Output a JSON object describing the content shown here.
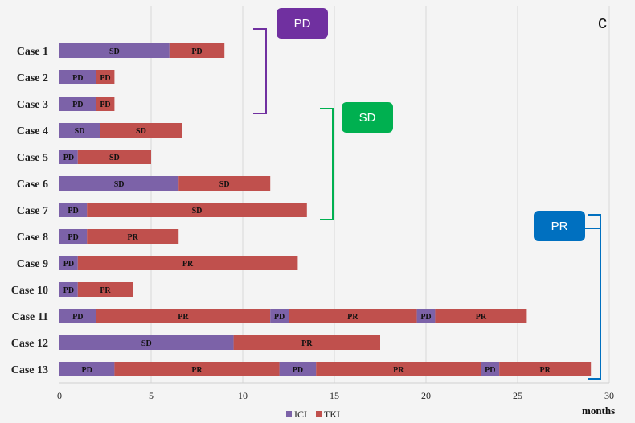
{
  "chart_data": {
    "type": "bar",
    "orientation": "horizontal",
    "stacked": true,
    "panel_label": "c",
    "xlabel": "months",
    "xlim": [
      0,
      30
    ],
    "xticks": [
      0,
      5,
      10,
      15,
      20,
      25,
      30
    ],
    "legend": [
      {
        "name": "ICI",
        "color": "#7c62a8"
      },
      {
        "name": "TKI",
        "color": "#c0504d"
      }
    ],
    "cases": [
      {
        "label": "Case 1",
        "segments": [
          {
            "drug": "ICI",
            "start": 0,
            "end": 6,
            "response": "SD"
          },
          {
            "drug": "TKI",
            "start": 6,
            "end": 9,
            "response": "PD"
          }
        ]
      },
      {
        "label": "Case 2",
        "segments": [
          {
            "drug": "ICI",
            "start": 0,
            "end": 2,
            "response": "PD"
          },
          {
            "drug": "TKI",
            "start": 2,
            "end": 3,
            "response": "PD"
          }
        ]
      },
      {
        "label": "Case 3",
        "segments": [
          {
            "drug": "ICI",
            "start": 0,
            "end": 2,
            "response": "PD"
          },
          {
            "drug": "TKI",
            "start": 2,
            "end": 3,
            "response": "PD"
          }
        ]
      },
      {
        "label": "Case 4",
        "segments": [
          {
            "drug": "ICI",
            "start": 0,
            "end": 2.2,
            "response": "SD"
          },
          {
            "drug": "TKI",
            "start": 2.2,
            "end": 6.7,
            "response": "SD"
          }
        ]
      },
      {
        "label": "Case 5",
        "segments": [
          {
            "drug": "ICI",
            "start": 0,
            "end": 1,
            "response": "PD"
          },
          {
            "drug": "TKI",
            "start": 1,
            "end": 5,
            "response": "SD"
          }
        ]
      },
      {
        "label": "Case 6",
        "segments": [
          {
            "drug": "ICI",
            "start": 0,
            "end": 6.5,
            "response": "SD"
          },
          {
            "drug": "TKI",
            "start": 6.5,
            "end": 11.5,
            "response": "SD"
          }
        ]
      },
      {
        "label": "Case 7",
        "segments": [
          {
            "drug": "ICI",
            "start": 0,
            "end": 1.5,
            "response": "PD"
          },
          {
            "drug": "TKI",
            "start": 1.5,
            "end": 13.5,
            "response": "SD"
          }
        ]
      },
      {
        "label": "Case 8",
        "segments": [
          {
            "drug": "ICI",
            "start": 0,
            "end": 1.5,
            "response": "PD"
          },
          {
            "drug": "TKI",
            "start": 1.5,
            "end": 6.5,
            "response": "PR"
          }
        ]
      },
      {
        "label": "Case 9",
        "segments": [
          {
            "drug": "ICI",
            "start": 0,
            "end": 1,
            "response": "PD"
          },
          {
            "drug": "TKI",
            "start": 1,
            "end": 13,
            "response": "PR"
          }
        ]
      },
      {
        "label": "Case 10",
        "segments": [
          {
            "drug": "ICI",
            "start": 0,
            "end": 1,
            "response": "PD"
          },
          {
            "drug": "TKI",
            "start": 1,
            "end": 4,
            "response": "PR"
          }
        ]
      },
      {
        "label": "Case 11",
        "segments": [
          {
            "drug": "ICI",
            "start": 0,
            "end": 2,
            "response": "PD"
          },
          {
            "drug": "TKI",
            "start": 2,
            "end": 11.5,
            "response": "PR"
          },
          {
            "drug": "ICI",
            "start": 11.5,
            "end": 12.5,
            "response": "PD"
          },
          {
            "drug": "TKI",
            "start": 12.5,
            "end": 19.5,
            "response": "PR"
          },
          {
            "drug": "ICI",
            "start": 19.5,
            "end": 20.5,
            "response": "PD"
          },
          {
            "drug": "TKI",
            "start": 20.5,
            "end": 25.5,
            "response": "PR"
          }
        ]
      },
      {
        "label": "Case 12",
        "segments": [
          {
            "drug": "ICI",
            "start": 0,
            "end": 9.5,
            "response": "SD"
          },
          {
            "drug": "TKI",
            "start": 9.5,
            "end": 17.5,
            "response": "PR"
          }
        ]
      },
      {
        "label": "Case 13",
        "segments": [
          {
            "drug": "ICI",
            "start": 0,
            "end": 3,
            "response": "PD"
          },
          {
            "drug": "TKI",
            "start": 3,
            "end": 12,
            "response": "PR"
          },
          {
            "drug": "ICI",
            "start": 12,
            "end": 14,
            "response": "PD"
          },
          {
            "drug": "TKI",
            "start": 14,
            "end": 23,
            "response": "PR"
          },
          {
            "drug": "ICI",
            "start": 23,
            "end": 24,
            "response": "PD"
          },
          {
            "drug": "TKI",
            "start": 24,
            "end": 29,
            "response": "PR"
          }
        ]
      }
    ],
    "groups": [
      {
        "label": "PD",
        "color": "#7030a0",
        "from_case": 0,
        "to_case": 2
      },
      {
        "label": "SD",
        "color": "#00b050",
        "from_case": 3,
        "to_case": 6
      },
      {
        "label": "PR",
        "color": "#0070c0",
        "from_case": 7,
        "to_case": 12
      }
    ]
  }
}
